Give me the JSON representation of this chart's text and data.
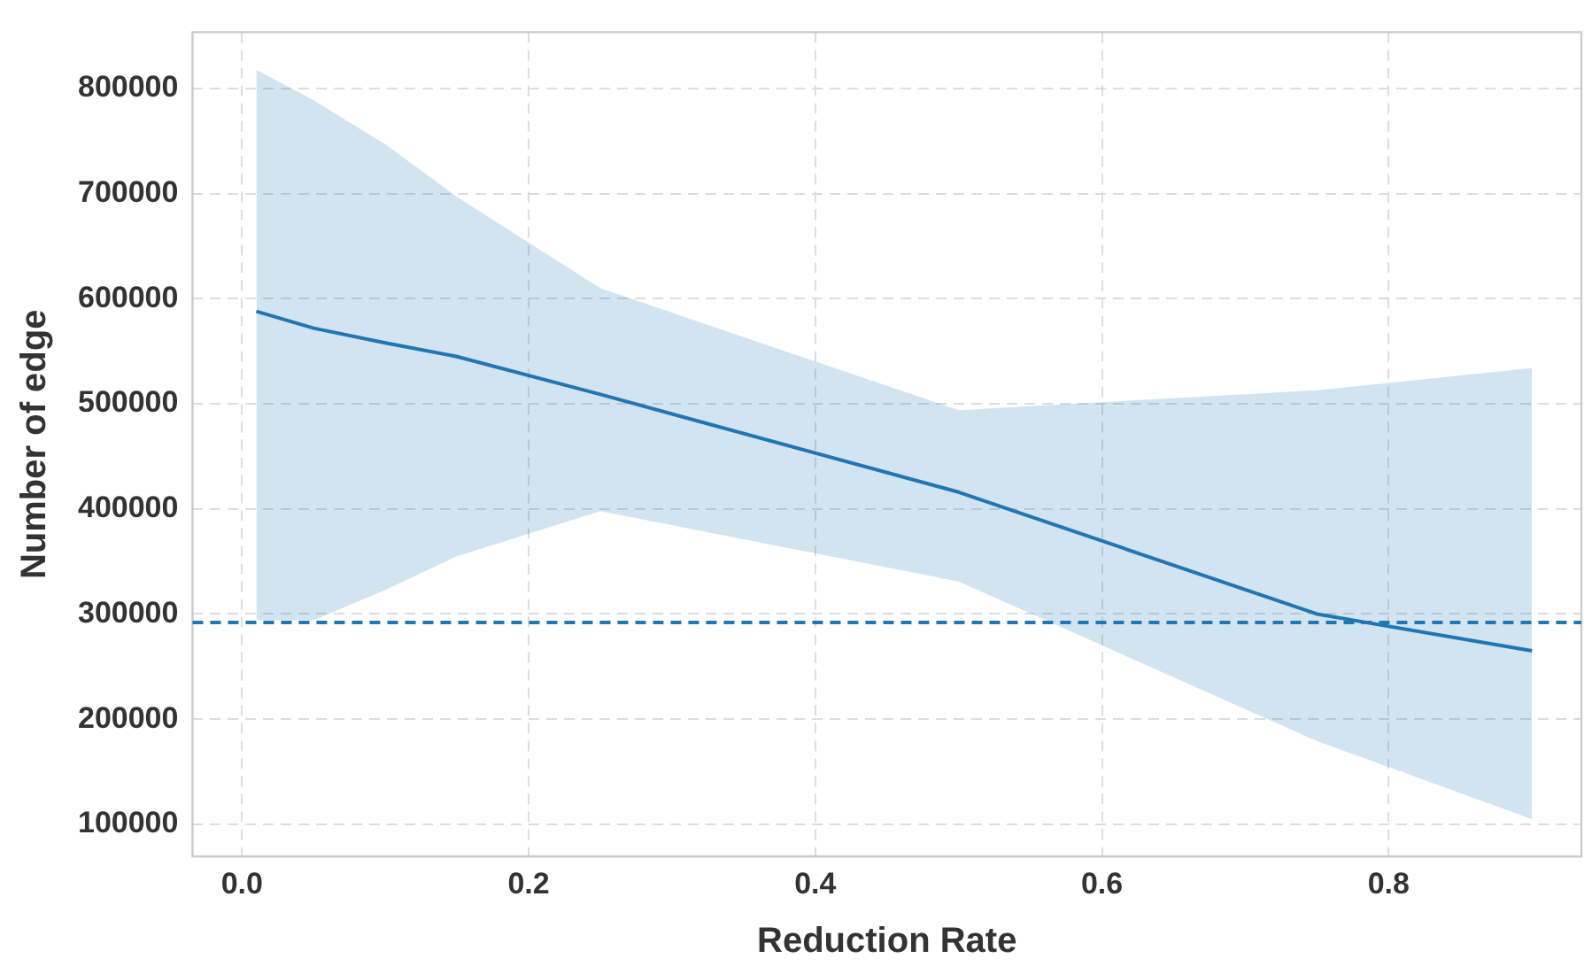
{
  "chart_data": {
    "type": "line",
    "xlabel": "Reduction Rate",
    "ylabel": "Number of edge",
    "x": [
      0.01,
      0.05,
      0.1,
      0.15,
      0.25,
      0.5,
      0.75,
      0.9
    ],
    "series": [
      {
        "color": "#1f77b4",
        "values": [
          588000,
          572000,
          558000,
          545000,
          509000,
          416000,
          300000,
          265000
        ],
        "lower": [
          294000,
          294000,
          323000,
          355000,
          398000,
          331000,
          179000,
          105000
        ],
        "upper": [
          818000,
          789000,
          747000,
          697000,
          610000,
          494000,
          513000,
          534000
        ]
      }
    ],
    "xlim": [
      -0.0345,
      0.9345
    ],
    "ylim": [
      69350,
      853650
    ],
    "xticks": [
      {
        "value": 0,
        "label": "0.0"
      },
      0.2,
      0.4,
      0.6,
      0.8
    ],
    "yticks": [
      100000,
      200000,
      300000,
      400000,
      500000,
      600000,
      700000,
      800000
    ],
    "ref_lines": [
      {
        "axis": "y",
        "value": 292000,
        "color": "#1f77b4",
        "line_style": "dashed"
      }
    ],
    "grid": true,
    "legend": false,
    "marker": "none",
    "line_style": "solid"
  }
}
